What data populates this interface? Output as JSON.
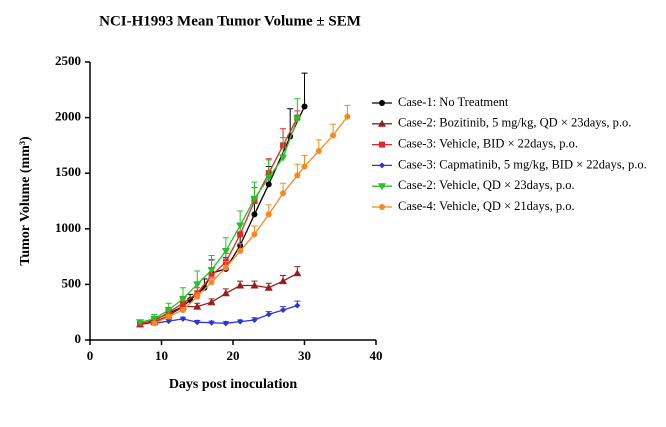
{
  "chart_data": {
    "type": "line",
    "title": "NCI-H1993 Mean Tumor Volume ± SEM",
    "xlabel": "Days post inoculation",
    "ylabel": "Tumor Volume (mm³)",
    "xlim": [
      0,
      40
    ],
    "xticks": [
      0,
      10,
      20,
      30,
      40
    ],
    "ylim": [
      0,
      2500
    ],
    "yticks": [
      0,
      500,
      1000,
      1500,
      2000,
      2500
    ],
    "series": [
      {
        "name": "Case-1: No Treatment",
        "color": "#000000",
        "marker": "circle",
        "x": [
          7,
          9,
          11,
          13,
          14,
          16,
          17,
          19,
          21,
          23,
          25,
          28,
          30
        ],
        "values": [
          140,
          180,
          240,
          300,
          360,
          470,
          600,
          640,
          850,
          1130,
          1400,
          1830,
          2100
        ],
        "errors": [
          15,
          20,
          30,
          40,
          50,
          80,
          120,
          100,
          120,
          150,
          160,
          250,
          300
        ]
      },
      {
        "name": "Case-2: Bozitinib, 5 mg/kg, QD × 23days, p.o.",
        "color": "#9b1c1c",
        "marker": "triangle",
        "x": [
          7,
          9,
          11,
          13,
          15,
          17,
          19,
          21,
          23,
          25,
          27,
          29
        ],
        "values": [
          140,
          160,
          220,
          300,
          300,
          340,
          420,
          490,
          490,
          470,
          530,
          600
        ],
        "errors": [
          10,
          15,
          20,
          30,
          30,
          30,
          40,
          40,
          40,
          40,
          50,
          60
        ]
      },
      {
        "name": "Case-3: Vehicle, BID × 22days, p.o.",
        "color": "#e8262a",
        "marker": "square",
        "x": [
          7,
          9,
          11,
          13,
          15,
          17,
          19,
          21,
          23,
          25,
          27,
          29
        ],
        "values": [
          150,
          170,
          250,
          330,
          420,
          580,
          700,
          950,
          1250,
          1500,
          1750,
          2000
        ],
        "errors": [
          15,
          20,
          30,
          40,
          50,
          70,
          80,
          100,
          120,
          130,
          150,
          60
        ]
      },
      {
        "name": "Case-3: Capmatinib, 5 mg/kg, BID × 22days, p.o.",
        "color": "#2b35d8",
        "marker": "diamond",
        "x": [
          9,
          11,
          13,
          15,
          17,
          19,
          21,
          23,
          25,
          27,
          29
        ],
        "values": [
          150,
          170,
          190,
          160,
          155,
          150,
          165,
          180,
          230,
          270,
          310
        ],
        "errors": [
          10,
          15,
          15,
          15,
          15,
          15,
          15,
          20,
          25,
          30,
          40
        ]
      },
      {
        "name": "Case-2: Vehicle, QD × 23days, p.o.",
        "color": "#22c422",
        "marker": "triangle-down",
        "x": [
          7,
          9,
          11,
          13,
          15,
          17,
          19,
          21,
          23,
          25,
          27,
          29
        ],
        "values": [
          160,
          190,
          270,
          370,
          500,
          630,
          800,
          1030,
          1270,
          1460,
          1640,
          1990
        ],
        "errors": [
          20,
          40,
          60,
          100,
          120,
          130,
          120,
          130,
          150,
          160,
          180,
          180
        ]
      },
      {
        "name": "Case-4: Vehicle, QD × 21days, p.o.",
        "color": "#f7891f",
        "marker": "circle",
        "x": [
          9,
          11,
          13,
          15,
          17,
          19,
          21,
          23,
          25,
          27,
          29,
          30,
          32,
          34,
          36
        ],
        "values": [
          150,
          210,
          270,
          390,
          520,
          650,
          800,
          950,
          1130,
          1320,
          1480,
          1560,
          1700,
          1840,
          2010
        ],
        "errors": [
          15,
          20,
          25,
          35,
          45,
          55,
          65,
          75,
          85,
          90,
          100,
          100,
          100,
          100,
          100
        ]
      }
    ]
  }
}
